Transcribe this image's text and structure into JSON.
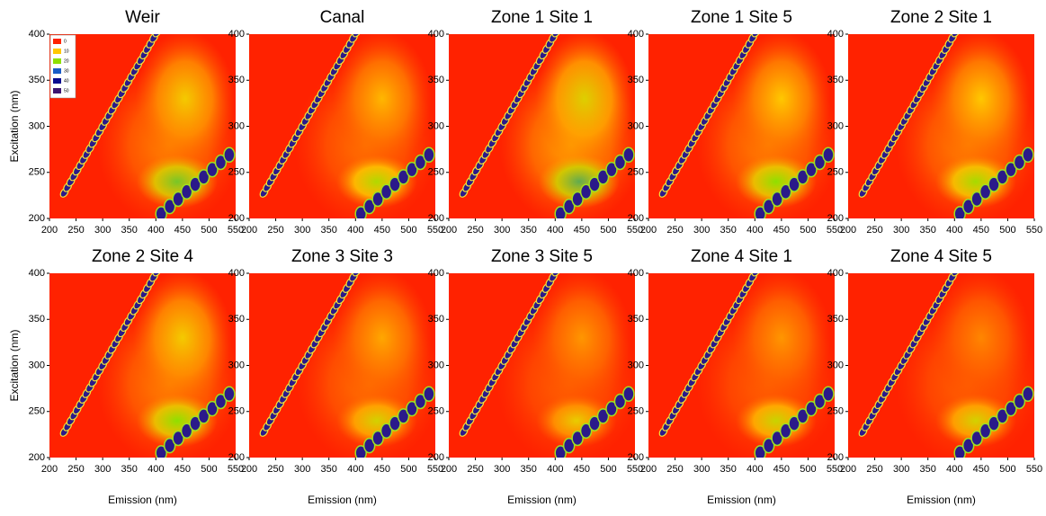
{
  "chart_data": [
    {
      "type": "contour",
      "title": "Weir",
      "ylabel": "Excitation (nm)",
      "xlim": [
        200,
        550
      ],
      "ylim": [
        200,
        400
      ],
      "xticks": [
        200,
        250,
        300,
        350,
        400,
        450,
        500,
        550
      ],
      "yticks": [
        200,
        250,
        300,
        350,
        400
      ],
      "x": [
        455,
        440,
        425
      ],
      "y": [
        330,
        240,
        280
      ],
      "values": [
        11,
        22,
        6
      ],
      "legend": {
        "levels": [
          0,
          10,
          20,
          30,
          40,
          50
        ],
        "colors": [
          "#ff2200",
          "#ffc800",
          "#8ee000",
          "#1a5cc8",
          "#0a0a90",
          "#3c1470"
        ]
      }
    },
    {
      "type": "contour",
      "title": "Canal",
      "xlim": [
        200,
        550
      ],
      "ylim": [
        200,
        400
      ],
      "xticks": [
        200,
        250,
        300,
        350,
        400,
        450,
        500,
        550
      ],
      "yticks": [
        200,
        250,
        300,
        350,
        400
      ],
      "x": [
        450,
        440,
        420
      ],
      "y": [
        330,
        240,
        280
      ],
      "values": [
        9,
        17,
        5
      ]
    },
    {
      "type": "contour",
      "title": "Zone 1 Site 1",
      "xlim": [
        200,
        550
      ],
      "ylim": [
        200,
        400
      ],
      "xticks": [
        200,
        250,
        300,
        350,
        400,
        450,
        500,
        550
      ],
      "yticks": [
        200,
        250,
        300,
        350,
        400
      ],
      "x": [
        455,
        445,
        430
      ],
      "y": [
        330,
        240,
        280
      ],
      "values": [
        13,
        24,
        8
      ]
    },
    {
      "type": "contour",
      "title": "Zone 1 Site 5",
      "xlim": [
        200,
        550
      ],
      "ylim": [
        200,
        400
      ],
      "xticks": [
        200,
        250,
        300,
        350,
        400,
        450,
        500,
        550
      ],
      "yticks": [
        200,
        250,
        300,
        350,
        400
      ],
      "x": [
        450,
        440,
        425
      ],
      "y": [
        330,
        240,
        280
      ],
      "values": [
        10,
        20,
        6
      ]
    },
    {
      "type": "contour",
      "title": "Zone 2 Site 1",
      "xlim": [
        200,
        550
      ],
      "ylim": [
        200,
        400
      ],
      "xticks": [
        200,
        250,
        300,
        350,
        400,
        450,
        500,
        550
      ],
      "yticks": [
        200,
        250,
        300,
        350,
        400
      ],
      "x": [
        450,
        440,
        425
      ],
      "y": [
        330,
        240,
        280
      ],
      "values": [
        10,
        18,
        6
      ]
    },
    {
      "type": "contour",
      "title": "Zone 2 Site 4",
      "xlabel": "Emission (nm)",
      "ylabel": "Excitation (nm)",
      "xlim": [
        200,
        550
      ],
      "ylim": [
        200,
        400
      ],
      "xticks": [
        200,
        250,
        300,
        350,
        400,
        450,
        500,
        550
      ],
      "yticks": [
        200,
        250,
        300,
        350,
        400
      ],
      "x": [
        450,
        440,
        425
      ],
      "y": [
        330,
        240,
        280
      ],
      "values": [
        11,
        20,
        6
      ]
    },
    {
      "type": "contour",
      "title": "Zone 3 Site 3",
      "xlabel": "Emission (nm)",
      "xlim": [
        200,
        550
      ],
      "ylim": [
        200,
        400
      ],
      "xticks": [
        200,
        250,
        300,
        350,
        400,
        450,
        500,
        550
      ],
      "yticks": [
        200,
        250,
        300,
        350,
        400
      ],
      "x": [
        450,
        440,
        425
      ],
      "y": [
        330,
        240,
        280
      ],
      "values": [
        8,
        14,
        5
      ]
    },
    {
      "type": "contour",
      "title": "Zone 3 Site 5",
      "xlabel": "Emission (nm)",
      "xlim": [
        200,
        550
      ],
      "ylim": [
        200,
        400
      ],
      "xticks": [
        200,
        250,
        300,
        350,
        400,
        450,
        500,
        550
      ],
      "yticks": [
        200,
        250,
        300,
        350,
        400
      ],
      "x": [
        450,
        440,
        425
      ],
      "y": [
        330,
        240,
        280
      ],
      "values": [
        7,
        12,
        4
      ]
    },
    {
      "type": "contour",
      "title": "Zone 4 Site 1",
      "xlabel": "Emission (nm)",
      "xlim": [
        200,
        550
      ],
      "ylim": [
        200,
        400
      ],
      "xticks": [
        200,
        250,
        300,
        350,
        400,
        450,
        500,
        550
      ],
      "yticks": [
        200,
        250,
        300,
        350,
        400
      ],
      "x": [
        450,
        440,
        425
      ],
      "y": [
        330,
        240,
        280
      ],
      "values": [
        7,
        15,
        4
      ]
    },
    {
      "type": "contour",
      "title": "Zone 4 Site 5",
      "xlabel": "Emission (nm)",
      "xlim": [
        200,
        550
      ],
      "ylim": [
        200,
        400
      ],
      "xticks": [
        200,
        250,
        300,
        350,
        400,
        450,
        500,
        550
      ],
      "yticks": [
        200,
        250,
        300,
        350,
        400
      ],
      "x": [
        450,
        440,
        425
      ],
      "y": [
        330,
        240,
        280
      ],
      "values": [
        6,
        14,
        4
      ]
    }
  ]
}
